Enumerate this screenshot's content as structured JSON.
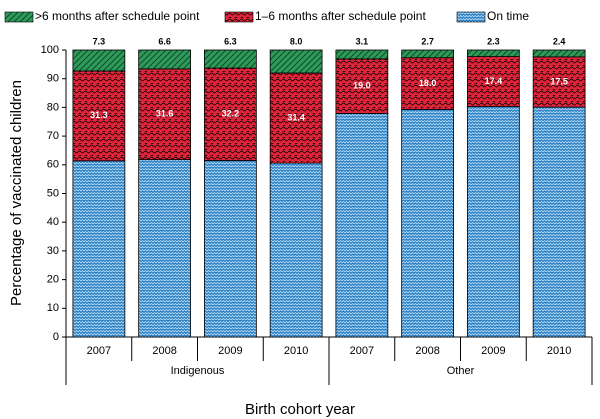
{
  "chart_data": {
    "type": "stacked_bar",
    "x_label": "Birth cohort year",
    "y_label": "Percentage of vaccinated children",
    "groups": [
      {
        "name": "Indigenous",
        "categories": [
          "2007",
          "2008",
          "2009",
          "2010"
        ]
      },
      {
        "name": "Other",
        "categories": [
          "2007",
          "2008",
          "2009",
          "2010"
        ]
      }
    ],
    "series": [
      {
        "name": ">6 months after schedule point",
        "color": "#2e9a5a",
        "pattern": "hatch",
        "values": [
          7.3,
          6.6,
          6.3,
          8.0,
          3.1,
          2.7,
          2.3,
          2.4
        ],
        "value_labels": [
          "7.3",
          "6.6",
          "6.3",
          "8.0",
          "3.1",
          "2.7",
          "2.3",
          "2.4"
        ]
      },
      {
        "name": "1–6 months after schedule point",
        "color": "#e0253a",
        "pattern": "squiggle",
        "values": [
          31.3,
          31.6,
          32.2,
          31.4,
          19.0,
          18.0,
          17.4,
          17.5
        ],
        "value_labels": [
          "31.3",
          "31.6",
          "32.2",
          "31.4",
          "19.0",
          "18.0",
          "17.4",
          "17.5"
        ]
      },
      {
        "name": "On time",
        "color": "#2a7fc4",
        "pattern": "zigzag",
        "values": [
          61.4,
          61.8,
          61.5,
          60.6,
          77.9,
          79.3,
          80.3,
          80.1
        ]
      }
    ],
    "ylim": [
      0,
      100
    ],
    "yticks": [
      0,
      10,
      20,
      30,
      40,
      50,
      60,
      70,
      80,
      90,
      100
    ],
    "grid": false,
    "legend": "top"
  }
}
